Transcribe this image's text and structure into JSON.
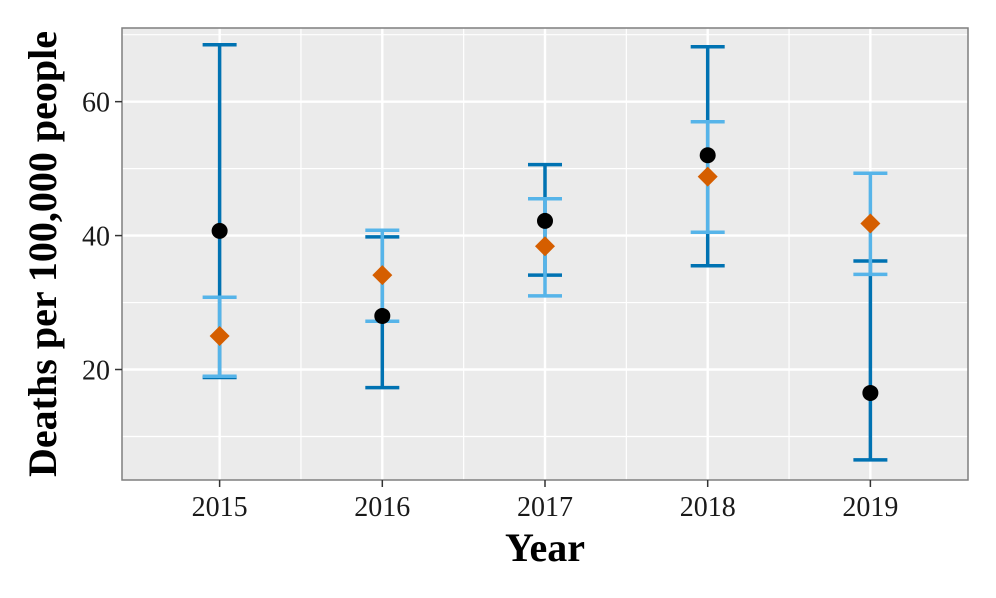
{
  "chart_data": {
    "type": "scatter",
    "xlabel": "Year",
    "ylabel": "Deaths per 100,000 people",
    "categories": [
      "2015",
      "2016",
      "2017",
      "2018",
      "2019"
    ],
    "ylim": [
      3.5,
      71
    ],
    "yticks": [
      20,
      40,
      60
    ],
    "grid": true,
    "legend": "none",
    "series": [
      {
        "marker": "circle",
        "color": "#000000",
        "errorbar_color": "#0072B2",
        "values": [
          40.7,
          28.0,
          42.2,
          52.0,
          16.5
        ],
        "lower": [
          18.8,
          17.3,
          34.1,
          35.5,
          6.5
        ],
        "upper": [
          68.5,
          39.8,
          50.6,
          68.2,
          36.2
        ]
      },
      {
        "marker": "diamond",
        "color": "#D55E00",
        "errorbar_color": "#56B4E9",
        "values": [
          25.0,
          34.1,
          38.4,
          48.8,
          41.8
        ],
        "lower": [
          19.0,
          27.2,
          31.0,
          40.5,
          34.2
        ],
        "upper": [
          30.8,
          40.8,
          45.5,
          57.0,
          49.3
        ]
      }
    ]
  }
}
